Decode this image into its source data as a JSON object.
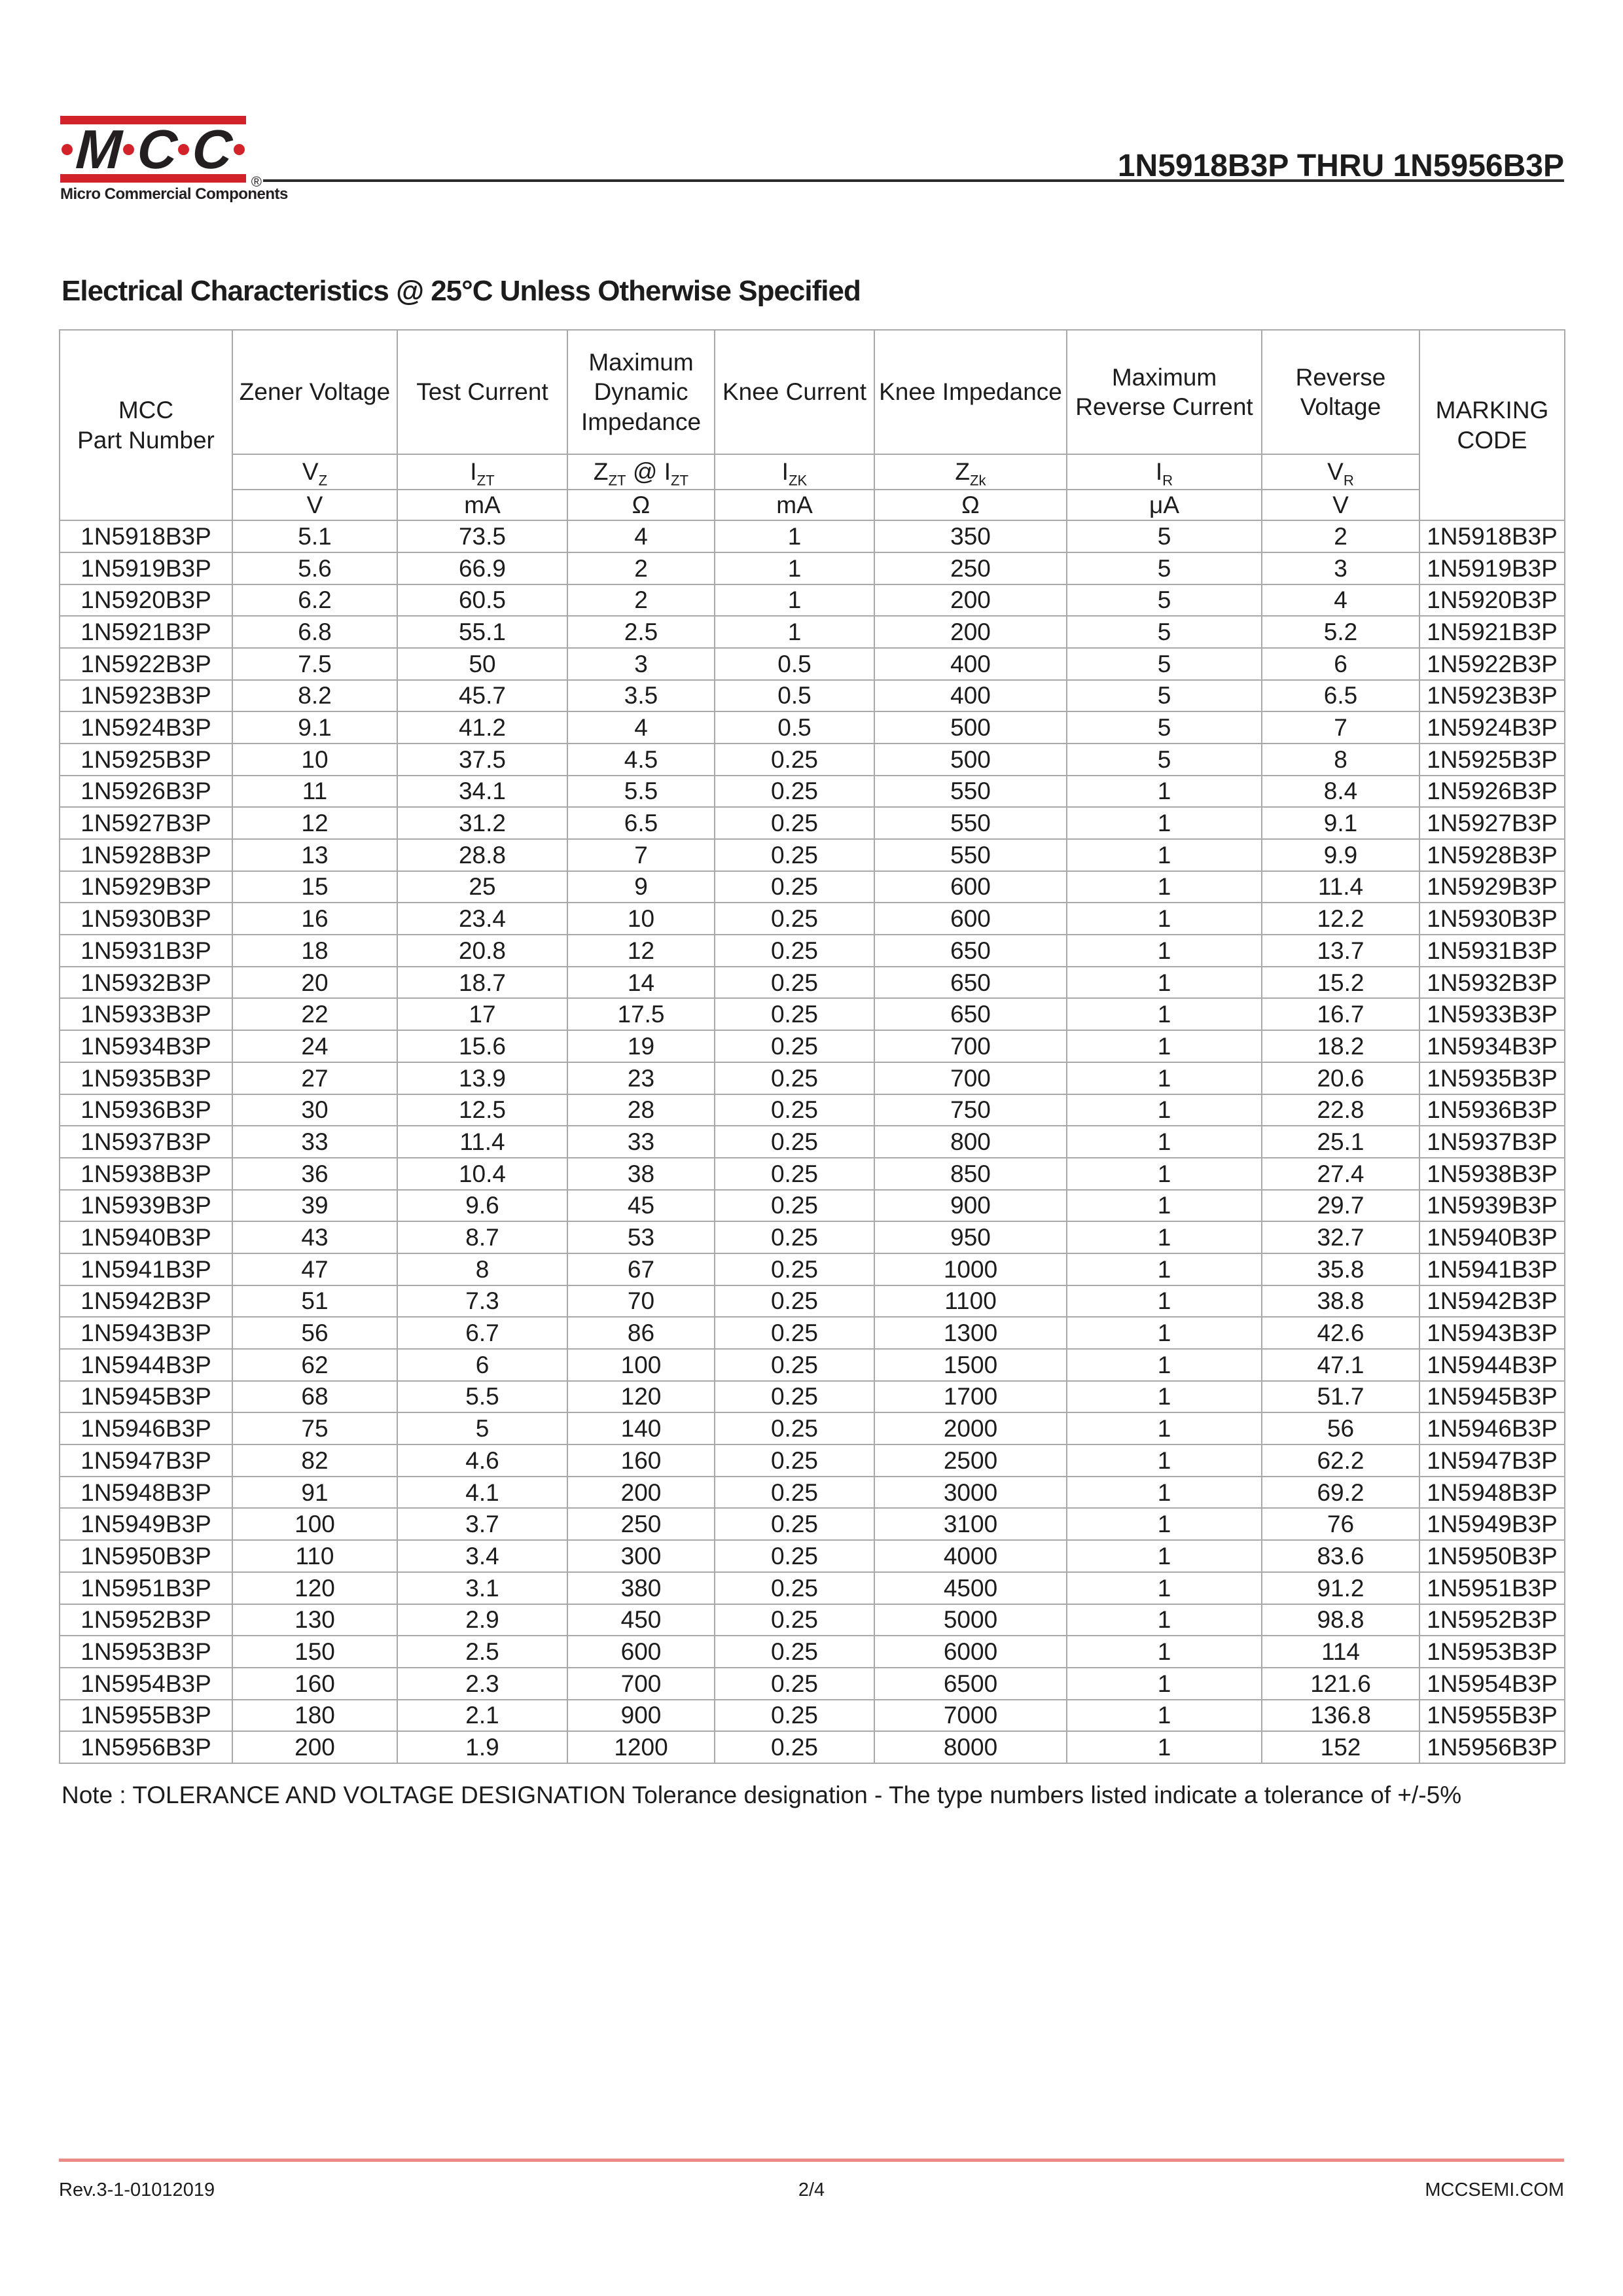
{
  "colors": {
    "brand_red": "#d2232a",
    "footer_line_pink": "#ec8b86"
  },
  "logo": {
    "letters": [
      "M",
      "C",
      "C"
    ],
    "registered_mark": "®",
    "tagline": "Micro Commercial Components"
  },
  "header": {
    "title": "1N5918B3P THRU 1N5956B3P"
  },
  "section_title": "Electrical Characteristics @ 25°C Unless Otherwise Specified",
  "table": {
    "part_header": {
      "line1": "MCC",
      "line2": "Part Number"
    },
    "marking_header": {
      "line1": "MARKING",
      "line2": "CODE"
    },
    "column_headers": [
      "Zener Voltage",
      "Test Current",
      "Maximum Dynamic Impedance",
      "Knee Current",
      "Knee Impedance",
      "Maximum Reverse Current",
      "Reverse Voltage"
    ],
    "symbols": [
      [
        {
          "t": "V"
        },
        {
          "sub": "Z"
        }
      ],
      [
        {
          "t": "I"
        },
        {
          "sub": "ZT"
        }
      ],
      [
        {
          "t": "Z"
        },
        {
          "sub": "ZT"
        },
        {
          "t": " @ I"
        },
        {
          "sub": "ZT"
        }
      ],
      [
        {
          "t": "I"
        },
        {
          "sub": "ZK"
        }
      ],
      [
        {
          "t": "Z"
        },
        {
          "sub": "Zk"
        }
      ],
      [
        {
          "t": "I"
        },
        {
          "sub": "R"
        }
      ],
      [
        {
          "t": "V"
        },
        {
          "sub": "R"
        }
      ]
    ],
    "units": [
      "V",
      "mA",
      "Ω",
      "mA",
      "Ω",
      "μA",
      "V"
    ],
    "rows": [
      [
        "1N5918B3P",
        "5.1",
        "73.5",
        "4",
        "1",
        "350",
        "5",
        "2",
        "1N5918B3P"
      ],
      [
        "1N5919B3P",
        "5.6",
        "66.9",
        "2",
        "1",
        "250",
        "5",
        "3",
        "1N5919B3P"
      ],
      [
        "1N5920B3P",
        "6.2",
        "60.5",
        "2",
        "1",
        "200",
        "5",
        "4",
        "1N5920B3P"
      ],
      [
        "1N5921B3P",
        "6.8",
        "55.1",
        "2.5",
        "1",
        "200",
        "5",
        "5.2",
        "1N5921B3P"
      ],
      [
        "1N5922B3P",
        "7.5",
        "50",
        "3",
        "0.5",
        "400",
        "5",
        "6",
        "1N5922B3P"
      ],
      [
        "1N5923B3P",
        "8.2",
        "45.7",
        "3.5",
        "0.5",
        "400",
        "5",
        "6.5",
        "1N5923B3P"
      ],
      [
        "1N5924B3P",
        "9.1",
        "41.2",
        "4",
        "0.5",
        "500",
        "5",
        "7",
        "1N5924B3P"
      ],
      [
        "1N5925B3P",
        "10",
        "37.5",
        "4.5",
        "0.25",
        "500",
        "5",
        "8",
        "1N5925B3P"
      ],
      [
        "1N5926B3P",
        "11",
        "34.1",
        "5.5",
        "0.25",
        "550",
        "1",
        "8.4",
        "1N5926B3P"
      ],
      [
        "1N5927B3P",
        "12",
        "31.2",
        "6.5",
        "0.25",
        "550",
        "1",
        "9.1",
        "1N5927B3P"
      ],
      [
        "1N5928B3P",
        "13",
        "28.8",
        "7",
        "0.25",
        "550",
        "1",
        "9.9",
        "1N5928B3P"
      ],
      [
        "1N5929B3P",
        "15",
        "25",
        "9",
        "0.25",
        "600",
        "1",
        "11.4",
        "1N5929B3P"
      ],
      [
        "1N5930B3P",
        "16",
        "23.4",
        "10",
        "0.25",
        "600",
        "1",
        "12.2",
        "1N5930B3P"
      ],
      [
        "1N5931B3P",
        "18",
        "20.8",
        "12",
        "0.25",
        "650",
        "1",
        "13.7",
        "1N5931B3P"
      ],
      [
        "1N5932B3P",
        "20",
        "18.7",
        "14",
        "0.25",
        "650",
        "1",
        "15.2",
        "1N5932B3P"
      ],
      [
        "1N5933B3P",
        "22",
        "17",
        "17.5",
        "0.25",
        "650",
        "1",
        "16.7",
        "1N5933B3P"
      ],
      [
        "1N5934B3P",
        "24",
        "15.6",
        "19",
        "0.25",
        "700",
        "1",
        "18.2",
        "1N5934B3P"
      ],
      [
        "1N5935B3P",
        "27",
        "13.9",
        "23",
        "0.25",
        "700",
        "1",
        "20.6",
        "1N5935B3P"
      ],
      [
        "1N5936B3P",
        "30",
        "12.5",
        "28",
        "0.25",
        "750",
        "1",
        "22.8",
        "1N5936B3P"
      ],
      [
        "1N5937B3P",
        "33",
        "11.4",
        "33",
        "0.25",
        "800",
        "1",
        "25.1",
        "1N5937B3P"
      ],
      [
        "1N5938B3P",
        "36",
        "10.4",
        "38",
        "0.25",
        "850",
        "1",
        "27.4",
        "1N5938B3P"
      ],
      [
        "1N5939B3P",
        "39",
        "9.6",
        "45",
        "0.25",
        "900",
        "1",
        "29.7",
        "1N5939B3P"
      ],
      [
        "1N5940B3P",
        "43",
        "8.7",
        "53",
        "0.25",
        "950",
        "1",
        "32.7",
        "1N5940B3P"
      ],
      [
        "1N5941B3P",
        "47",
        "8",
        "67",
        "0.25",
        "1000",
        "1",
        "35.8",
        "1N5941B3P"
      ],
      [
        "1N5942B3P",
        "51",
        "7.3",
        "70",
        "0.25",
        "1100",
        "1",
        "38.8",
        "1N5942B3P"
      ],
      [
        "1N5943B3P",
        "56",
        "6.7",
        "86",
        "0.25",
        "1300",
        "1",
        "42.6",
        "1N5943B3P"
      ],
      [
        "1N5944B3P",
        "62",
        "6",
        "100",
        "0.25",
        "1500",
        "1",
        "47.1",
        "1N5944B3P"
      ],
      [
        "1N5945B3P",
        "68",
        "5.5",
        "120",
        "0.25",
        "1700",
        "1",
        "51.7",
        "1N5945B3P"
      ],
      [
        "1N5946B3P",
        "75",
        "5",
        "140",
        "0.25",
        "2000",
        "1",
        "56",
        "1N5946B3P"
      ],
      [
        "1N5947B3P",
        "82",
        "4.6",
        "160",
        "0.25",
        "2500",
        "1",
        "62.2",
        "1N5947B3P"
      ],
      [
        "1N5948B3P",
        "91",
        "4.1",
        "200",
        "0.25",
        "3000",
        "1",
        "69.2",
        "1N5948B3P"
      ],
      [
        "1N5949B3P",
        "100",
        "3.7",
        "250",
        "0.25",
        "3100",
        "1",
        "76",
        "1N5949B3P"
      ],
      [
        "1N5950B3P",
        "110",
        "3.4",
        "300",
        "0.25",
        "4000",
        "1",
        "83.6",
        "1N5950B3P"
      ],
      [
        "1N5951B3P",
        "120",
        "3.1",
        "380",
        "0.25",
        "4500",
        "1",
        "91.2",
        "1N5951B3P"
      ],
      [
        "1N5952B3P",
        "130",
        "2.9",
        "450",
        "0.25",
        "5000",
        "1",
        "98.8",
        "1N5952B3P"
      ],
      [
        "1N5953B3P",
        "150",
        "2.5",
        "600",
        "0.25",
        "6000",
        "1",
        "114",
        "1N5953B3P"
      ],
      [
        "1N5954B3P",
        "160",
        "2.3",
        "700",
        "0.25",
        "6500",
        "1",
        "121.6",
        "1N5954B3P"
      ],
      [
        "1N5955B3P",
        "180",
        "2.1",
        "900",
        "0.25",
        "7000",
        "1",
        "136.8",
        "1N5955B3P"
      ],
      [
        "1N5956B3P",
        "200",
        "1.9",
        "1200",
        "0.25",
        "8000",
        "1",
        "152",
        "1N5956B3P"
      ]
    ]
  },
  "note": "Note : TOLERANCE AND VOLTAGE DESIGNATION Tolerance designation - The type numbers listed indicate a tolerance of +/-5%",
  "footer": {
    "revision": "Rev.3-1-01012019",
    "page_number": "2/4",
    "website": "MCCSEMI.COM"
  }
}
